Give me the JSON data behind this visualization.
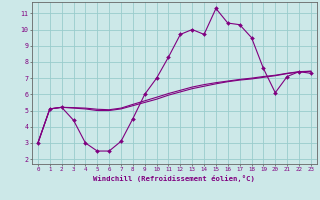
{
  "xlabel": "Windchill (Refroidissement éolien,°C)",
  "bg_color": "#cce8e8",
  "line_color": "#800080",
  "grid_color": "#99cccc",
  "x_ticks": [
    0,
    1,
    2,
    3,
    4,
    5,
    6,
    7,
    8,
    9,
    10,
    11,
    12,
    13,
    14,
    15,
    16,
    17,
    18,
    19,
    20,
    21,
    22,
    23
  ],
  "y_ticks": [
    2,
    3,
    4,
    5,
    6,
    7,
    8,
    9,
    10,
    11
  ],
  "ylim": [
    1.7,
    11.7
  ],
  "xlim": [
    -0.5,
    23.5
  ],
  "series1_x": [
    0,
    1,
    2,
    3,
    4,
    5,
    6,
    7,
    8,
    9,
    10,
    11,
    12,
    13,
    14,
    15,
    16,
    17,
    18,
    19,
    20,
    21,
    22,
    23
  ],
  "series1_y": [
    3.0,
    5.1,
    5.2,
    4.4,
    3.0,
    2.5,
    2.5,
    3.1,
    4.5,
    6.0,
    7.0,
    8.3,
    9.7,
    10.0,
    9.7,
    11.3,
    10.4,
    10.3,
    9.5,
    7.6,
    6.1,
    7.1,
    7.4,
    7.3
  ],
  "series2_x": [
    0,
    1,
    2,
    3,
    4,
    5,
    6,
    7,
    8,
    9,
    10,
    11,
    12,
    13,
    14,
    15,
    16,
    17,
    18,
    19,
    20,
    21,
    22,
    23
  ],
  "series2_y": [
    3.0,
    5.1,
    5.2,
    5.15,
    5.1,
    5.0,
    5.0,
    5.1,
    5.3,
    5.5,
    5.7,
    5.95,
    6.15,
    6.35,
    6.5,
    6.65,
    6.78,
    6.88,
    6.95,
    7.05,
    7.15,
    7.28,
    7.38,
    7.42
  ],
  "series3_x": [
    0,
    1,
    2,
    3,
    4,
    5,
    6,
    7,
    8,
    9,
    10,
    11,
    12,
    13,
    14,
    15,
    16,
    17,
    18,
    19,
    20,
    21,
    22,
    23
  ],
  "series3_y": [
    3.0,
    5.1,
    5.2,
    5.18,
    5.15,
    5.08,
    5.05,
    5.15,
    5.38,
    5.6,
    5.82,
    6.05,
    6.25,
    6.45,
    6.6,
    6.72,
    6.82,
    6.92,
    7.0,
    7.1,
    7.18,
    7.3,
    7.4,
    7.43
  ]
}
